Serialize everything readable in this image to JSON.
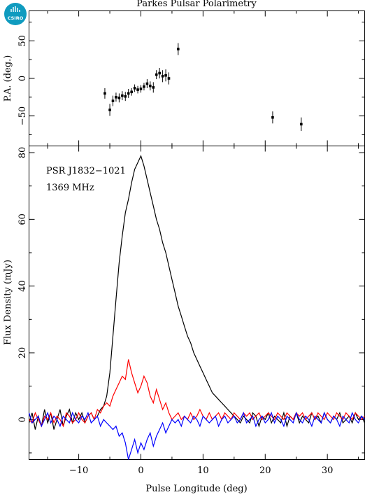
{
  "chart_data": {
    "title": "Parkes Pulsar Polarimetry",
    "xlabel": "Pulse Longitude (deg)",
    "xlim": [
      -18,
      36
    ],
    "x_ticks": [
      -10,
      0,
      10,
      20,
      30
    ],
    "logo_text": "CSIRO",
    "panels": [
      {
        "name": "pa",
        "type": "scatter",
        "ylabel": "P.A. (deg.)",
        "ylim": [
          -90,
          90
        ],
        "y_ticks": [
          -50,
          0,
          50
        ],
        "points": [
          {
            "x": -5.8,
            "y": -20,
            "err": 7
          },
          {
            "x": -5.0,
            "y": -42,
            "err": 8
          },
          {
            "x": -4.5,
            "y": -30,
            "err": 7
          },
          {
            "x": -4.0,
            "y": -25,
            "err": 6
          },
          {
            "x": -3.5,
            "y": -26,
            "err": 6
          },
          {
            "x": -3.0,
            "y": -23,
            "err": 6
          },
          {
            "x": -2.5,
            "y": -24,
            "err": 6
          },
          {
            "x": -2.0,
            "y": -20,
            "err": 6
          },
          {
            "x": -1.5,
            "y": -18,
            "err": 5
          },
          {
            "x": -1.0,
            "y": -13,
            "err": 5
          },
          {
            "x": -0.5,
            "y": -15,
            "err": 5
          },
          {
            "x": 0.0,
            "y": -14,
            "err": 5
          },
          {
            "x": 0.5,
            "y": -11,
            "err": 5
          },
          {
            "x": 1.0,
            "y": -7,
            "err": 6
          },
          {
            "x": 1.5,
            "y": -10,
            "err": 6
          },
          {
            "x": 2.0,
            "y": -12,
            "err": 7
          },
          {
            "x": 2.5,
            "y": 5,
            "err": 6
          },
          {
            "x": 3.0,
            "y": 7,
            "err": 7
          },
          {
            "x": 3.5,
            "y": 3,
            "err": 8
          },
          {
            "x": 4.0,
            "y": 4,
            "err": 8
          },
          {
            "x": 4.5,
            "y": 0,
            "err": 8
          },
          {
            "x": 6.0,
            "y": 39,
            "err": 8
          },
          {
            "x": 21.2,
            "y": -52,
            "err": 8
          },
          {
            "x": 25.8,
            "y": -61,
            "err": 9
          }
        ]
      },
      {
        "name": "flux",
        "type": "line",
        "ylabel": "Flux Density (mJy)",
        "ylim": [
          -12,
          82
        ],
        "y_ticks": [
          0,
          20,
          40,
          60,
          80
        ],
        "annotations": [
          "PSR J1832−1021",
          "1369 MHz"
        ],
        "x": [
          -18.0,
          -17.5,
          -17.0,
          -16.5,
          -16.0,
          -15.5,
          -15.0,
          -14.5,
          -14.0,
          -13.5,
          -13.0,
          -12.5,
          -12.0,
          -11.5,
          -11.0,
          -10.5,
          -10.0,
          -9.5,
          -9.0,
          -8.5,
          -8.0,
          -7.5,
          -7.0,
          -6.5,
          -6.0,
          -5.5,
          -5.0,
          -4.5,
          -4.0,
          -3.5,
          -3.0,
          -2.5,
          -2.0,
          -1.5,
          -1.0,
          -0.5,
          0.0,
          0.5,
          1.0,
          1.5,
          2.0,
          2.5,
          3.0,
          3.5,
          4.0,
          4.5,
          5.0,
          5.5,
          6.0,
          6.5,
          7.0,
          7.5,
          8.0,
          8.5,
          9.0,
          9.5,
          10.0,
          10.5,
          11.0,
          11.5,
          12.0,
          12.5,
          13.0,
          13.5,
          14.0,
          14.5,
          15.0,
          15.5,
          16.0,
          16.5,
          17.0,
          17.5,
          18.0,
          18.5,
          19.0,
          19.5,
          20.0,
          20.5,
          21.0,
          21.5,
          22.0,
          22.5,
          23.0,
          23.5,
          24.0,
          24.5,
          25.0,
          25.5,
          26.0,
          26.5,
          27.0,
          27.5,
          28.0,
          28.5,
          29.0,
          29.5,
          30.0,
          30.5,
          31.0,
          31.5,
          32.0,
          32.5,
          33.0,
          33.5,
          34.0,
          34.5,
          35.0,
          35.5,
          36.0
        ],
        "series": [
          {
            "color": "#000000",
            "values": [
              -1,
              2,
              -3,
              1,
              -2,
              3,
              -1,
              2,
              -3,
              0,
              3,
              -2,
              1,
              3,
              -1,
              2,
              0,
              2,
              -1,
              1,
              2,
              0,
              1,
              3,
              4,
              7,
              14,
              25,
              36,
              47,
              55,
              62,
              66,
              71,
              75,
              77,
              79,
              76,
              72,
              68,
              64,
              60,
              57,
              53,
              50,
              46,
              42,
              38,
              34,
              31,
              28,
              25,
              23,
              20,
              18,
              16,
              14,
              12,
              10,
              8,
              7,
              6,
              5,
              4,
              3,
              2,
              1,
              0,
              -1,
              1,
              0,
              -1,
              2,
              1,
              -2,
              1,
              0,
              2,
              -1,
              1,
              0,
              -1,
              2,
              -2,
              1,
              0,
              2,
              -1,
              1,
              0,
              -1,
              2,
              0,
              1,
              -1,
              2,
              0,
              -1,
              1,
              0,
              2,
              -1,
              0,
              1,
              -1,
              2,
              0,
              1,
              -1
            ]
          },
          {
            "color": "#ff0000",
            "values": [
              0,
              -1,
              2,
              0,
              -2,
              1,
              0,
              2,
              -1,
              1,
              0,
              -2,
              2,
              1,
              -1,
              0,
              2,
              0,
              -1,
              1,
              2,
              0,
              3,
              2,
              4,
              5,
              4,
              7,
              9,
              11,
              13,
              12,
              18,
              14,
              11,
              8,
              10,
              13,
              11,
              7,
              5,
              9,
              6,
              3,
              5,
              2,
              0,
              1,
              2,
              0,
              1,
              0,
              2,
              0,
              1,
              3,
              1,
              0,
              2,
              0,
              1,
              2,
              0,
              2,
              1,
              0,
              2,
              1,
              0,
              2,
              1,
              2,
              0,
              1,
              2,
              0,
              1,
              2,
              1,
              0,
              2,
              1,
              0,
              2,
              1,
              0,
              2,
              1,
              2,
              0,
              1,
              2,
              0,
              2,
              1,
              0,
              2,
              1,
              0,
              2,
              1,
              0,
              2,
              1,
              0,
              2,
              1,
              0,
              1
            ]
          },
          {
            "color": "#0000ff",
            "values": [
              2,
              -1,
              0,
              1,
              -2,
              0,
              2,
              -1,
              1,
              0,
              -2,
              1,
              0,
              -1,
              2,
              0,
              -1,
              1,
              0,
              2,
              -1,
              0,
              1,
              -2,
              0,
              -1,
              -2,
              -3,
              -2,
              -5,
              -4,
              -7,
              -12,
              -9,
              -6,
              -10,
              -7,
              -9,
              -6,
              -4,
              -8,
              -5,
              -3,
              -1,
              -4,
              -2,
              0,
              -1,
              0,
              -2,
              1,
              0,
              -1,
              1,
              0,
              -2,
              1,
              0,
              -1,
              0,
              1,
              -2,
              0,
              1,
              -1,
              0,
              1,
              -1,
              0,
              2,
              -1,
              0,
              1,
              -2,
              0,
              1,
              -1,
              0,
              2,
              -1,
              1,
              0,
              -2,
              1,
              0,
              -1,
              2,
              0,
              -1,
              1,
              0,
              -2,
              1,
              0,
              -1,
              2,
              0,
              -1,
              1,
              0,
              -2,
              1,
              0,
              -1,
              2,
              0,
              -1,
              1,
              0
            ]
          }
        ]
      }
    ]
  }
}
